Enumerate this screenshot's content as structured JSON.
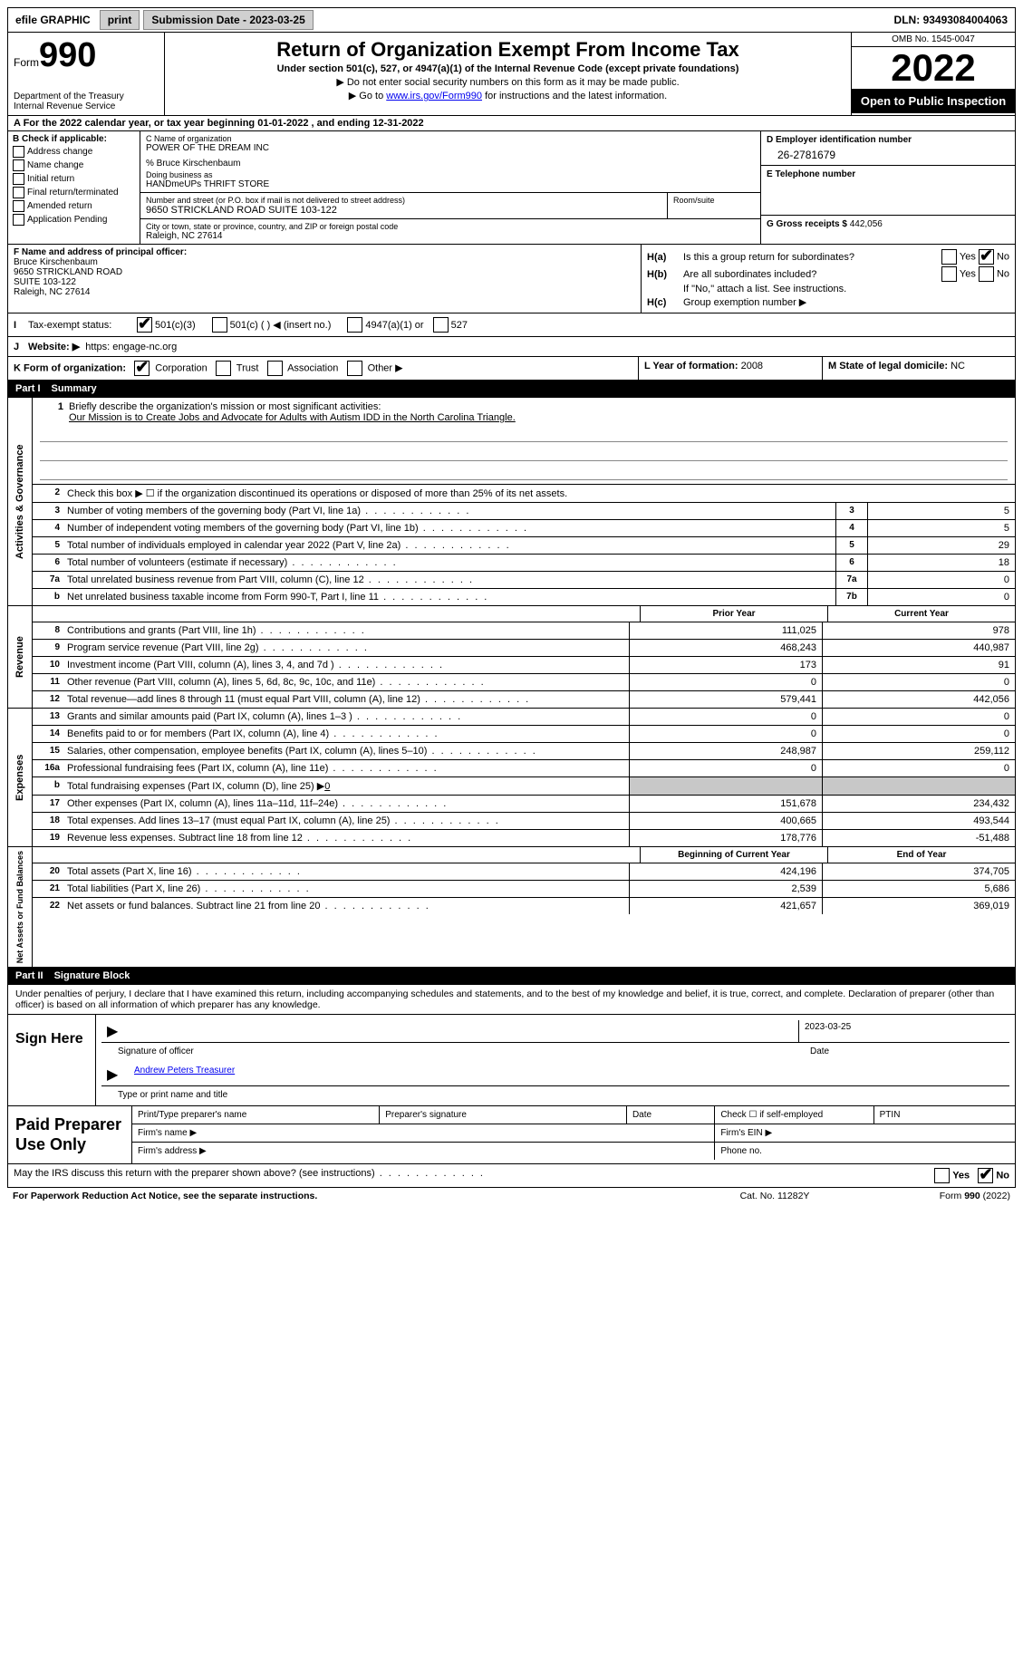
{
  "topbar": {
    "efile": "efile GRAPHIC",
    "print": "print",
    "submission": "Submission Date - 2023-03-25",
    "dln_label": "DLN:",
    "dln": "93493084004063"
  },
  "header": {
    "form_label": "Form",
    "form_num": "990",
    "dept": "Department of the Treasury",
    "irs": "Internal Revenue Service",
    "title": "Return of Organization Exempt From Income Tax",
    "sub": "Under section 501(c), 527, or 4947(a)(1) of the Internal Revenue Code (except private foundations)",
    "note1": "▶ Do not enter social security numbers on this form as it may be made public.",
    "note2_pre": "▶ Go to ",
    "note2_link": "www.irs.gov/Form990",
    "note2_post": " for instructions and the latest information.",
    "omb": "OMB No. 1545-0047",
    "year": "2022",
    "inspection": "Open to Public Inspection"
  },
  "rowA": {
    "label_pre": "A For the 2022 calendar year, or tax year beginning ",
    "begin": "01-01-2022",
    "mid": " , and ending ",
    "end": "12-31-2022"
  },
  "colB": {
    "heading": "B Check if applicable:",
    "items": [
      "Address change",
      "Name change",
      "Initial return",
      "Final return/terminated",
      "Amended return",
      "Application Pending"
    ]
  },
  "colC": {
    "name_label": "C Name of organization",
    "name": "POWER OF THE DREAM INC",
    "care_of": "% Bruce Kirschenbaum",
    "dba_label": "Doing business as",
    "dba": "HANDmeUPs THRIFT STORE",
    "street_label": "Number and street (or P.O. box if mail is not delivered to street address)",
    "room_label": "Room/suite",
    "street": "9650 STRICKLAND ROAD SUITE 103-122",
    "city_label": "City or town, state or province, country, and ZIP or foreign postal code",
    "city": "Raleigh, NC  27614"
  },
  "colD": {
    "ein_label": "D Employer identification number",
    "ein": "26-2781679",
    "phone_label": "E Telephone number",
    "phone": "",
    "gross_label": "G Gross receipts $",
    "gross": "442,056"
  },
  "colF": {
    "label": "F Name and address of principal officer:",
    "name": "Bruce Kirschenbaum",
    "l1": "9650 STRICKLAND ROAD",
    "l2": "SUITE 103-122",
    "l3": "Raleigh, NC  27614"
  },
  "colH": {
    "ha_label": "H(a)",
    "ha_q": "Is this a group return for subordinates?",
    "hb_label": "H(b)",
    "hb_q": "Are all subordinates included?",
    "hb_note": "If \"No,\" attach a list. See instructions.",
    "hc_label": "H(c)",
    "hc_q": "Group exemption number ▶",
    "yes": "Yes",
    "no": "No"
  },
  "rowI": {
    "label": "I",
    "text": "Tax-exempt status:",
    "opts": [
      "501(c)(3)",
      "501(c) (  ) ◀ (insert no.)",
      "4947(a)(1) or",
      "527"
    ]
  },
  "rowJ": {
    "label": "J",
    "text": "Website: ▶",
    "url": "https: engage-nc.org"
  },
  "rowK": {
    "label": "K Form of organization:",
    "opts": [
      "Corporation",
      "Trust",
      "Association",
      "Other ▶"
    ],
    "l_label": "L Year of formation:",
    "l_val": "2008",
    "m_label": "M State of legal domicile:",
    "m_val": "NC"
  },
  "part1": {
    "label": "Part I",
    "title": "Summary"
  },
  "gov": {
    "vlabel": "Activities & Governance",
    "l1_label": "1",
    "l1_text": "Briefly describe the organization's mission or most significant activities:",
    "l1_mission": "Our Mission is to Create Jobs and Advocate for Adults with Autism IDD in the North Carolina Triangle.",
    "l2_label": "2",
    "l2_text": "Check this box ▶ ☐ if the organization discontinued its operations or disposed of more than 25% of its net assets.",
    "l3": {
      "n": "3",
      "d": "Number of voting members of the governing body (Part VI, line 1a)",
      "b": "3",
      "v": "5"
    },
    "l4": {
      "n": "4",
      "d": "Number of independent voting members of the governing body (Part VI, line 1b)",
      "b": "4",
      "v": "5"
    },
    "l5": {
      "n": "5",
      "d": "Total number of individuals employed in calendar year 2022 (Part V, line 2a)",
      "b": "5",
      "v": "29"
    },
    "l6": {
      "n": "6",
      "d": "Total number of volunteers (estimate if necessary)",
      "b": "6",
      "v": "18"
    },
    "l7a": {
      "n": "7a",
      "d": "Total unrelated business revenue from Part VIII, column (C), line 12",
      "b": "7a",
      "v": "0"
    },
    "l7b": {
      "n": "b",
      "d": "Net unrelated business taxable income from Form 990-T, Part I, line 11",
      "b": "7b",
      "v": "0"
    }
  },
  "rev": {
    "vlabel": "Revenue",
    "h_prior": "Prior Year",
    "h_current": "Current Year",
    "lines": [
      {
        "n": "8",
        "d": "Contributions and grants (Part VIII, line 1h)",
        "p": "111,025",
        "c": "978"
      },
      {
        "n": "9",
        "d": "Program service revenue (Part VIII, line 2g)",
        "p": "468,243",
        "c": "440,987"
      },
      {
        "n": "10",
        "d": "Investment income (Part VIII, column (A), lines 3, 4, and 7d )",
        "p": "173",
        "c": "91"
      },
      {
        "n": "11",
        "d": "Other revenue (Part VIII, column (A), lines 5, 6d, 8c, 9c, 10c, and 11e)",
        "p": "0",
        "c": "0"
      },
      {
        "n": "12",
        "d": "Total revenue—add lines 8 through 11 (must equal Part VIII, column (A), line 12)",
        "p": "579,441",
        "c": "442,056"
      }
    ]
  },
  "exp": {
    "vlabel": "Expenses",
    "lines": [
      {
        "n": "13",
        "d": "Grants and similar amounts paid (Part IX, column (A), lines 1–3 )",
        "p": "0",
        "c": "0"
      },
      {
        "n": "14",
        "d": "Benefits paid to or for members (Part IX, column (A), line 4)",
        "p": "0",
        "c": "0"
      },
      {
        "n": "15",
        "d": "Salaries, other compensation, employee benefits (Part IX, column (A), lines 5–10)",
        "p": "248,987",
        "c": "259,112"
      },
      {
        "n": "16a",
        "d": "Professional fundraising fees (Part IX, column (A), line 11e)",
        "p": "0",
        "c": "0"
      },
      {
        "n": "b",
        "d": "Total fundraising expenses (Part IX, column (D), line 25) ▶",
        "extra": "0",
        "shade": true
      },
      {
        "n": "17",
        "d": "Other expenses (Part IX, column (A), lines 11a–11d, 11f–24e)",
        "p": "151,678",
        "c": "234,432"
      },
      {
        "n": "18",
        "d": "Total expenses. Add lines 13–17 (must equal Part IX, column (A), line 25)",
        "p": "400,665",
        "c": "493,544"
      },
      {
        "n": "19",
        "d": "Revenue less expenses. Subtract line 18 from line 12",
        "p": "178,776",
        "c": "-51,488"
      }
    ]
  },
  "net": {
    "vlabel": "Net Assets or Fund Balances",
    "h_begin": "Beginning of Current Year",
    "h_end": "End of Year",
    "lines": [
      {
        "n": "20",
        "d": "Total assets (Part X, line 16)",
        "p": "424,196",
        "c": "374,705"
      },
      {
        "n": "21",
        "d": "Total liabilities (Part X, line 26)",
        "p": "2,539",
        "c": "5,686"
      },
      {
        "n": "22",
        "d": "Net assets or fund balances. Subtract line 21 from line 20",
        "p": "421,657",
        "c": "369,019"
      }
    ]
  },
  "part2": {
    "label": "Part II",
    "title": "Signature Block",
    "penalties": "Under penalties of perjury, I declare that I have examined this return, including accompanying schedules and statements, and to the best of my knowledge and belief, it is true, correct, and complete. Declaration of preparer (other than officer) is based on all information of which preparer has any knowledge."
  },
  "sign": {
    "label": "Sign Here",
    "sig_officer": "Signature of officer",
    "date_label": "Date",
    "date": "2023-03-25",
    "name": "Andrew Peters  Treasurer",
    "name_label": "Type or print name and title"
  },
  "paid": {
    "label": "Paid Preparer Use Only",
    "h1": "Print/Type preparer's name",
    "h2": "Preparer's signature",
    "h3": "Date",
    "h4_pre": "Check ☐ if self-employed",
    "h5": "PTIN",
    "firm_name": "Firm's name  ▶",
    "firm_ein": "Firm's EIN ▶",
    "firm_addr": "Firm's address ▶",
    "phone": "Phone no."
  },
  "discuss": {
    "q": "May the IRS discuss this return with the preparer shown above? (see instructions)",
    "yes": "Yes",
    "no": "No"
  },
  "footer": {
    "left": "For Paperwork Reduction Act Notice, see the separate instructions.",
    "center": "Cat. No. 11282Y",
    "right": "Form 990 (2022)"
  }
}
